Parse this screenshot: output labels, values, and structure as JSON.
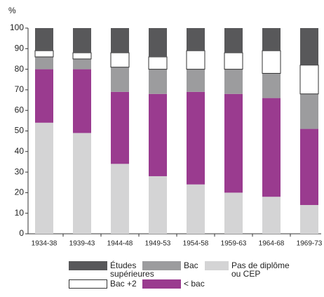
{
  "chart_data": {
    "type": "stacked_bar",
    "y_label": "%",
    "categories": [
      "1934-38",
      "1939-43",
      "1944-48",
      "1949-53",
      "1954-58",
      "1959-63",
      "1964-68",
      "1969-73"
    ],
    "series": [
      {
        "name": "Pas de diplôme ou CEP",
        "color": "#d4d4d5",
        "values": [
          54,
          49,
          34,
          28,
          24,
          20,
          18,
          14
        ]
      },
      {
        "name": "< bac",
        "color": "#9a3b8f",
        "values": [
          26,
          31,
          35,
          40,
          45,
          48,
          48,
          37
        ]
      },
      {
        "name": "Bac",
        "color": "#9c9c9e",
        "values": [
          6,
          5,
          12,
          12,
          11,
          12,
          12,
          17
        ]
      },
      {
        "name": "Bac +2",
        "color": "#ffffff",
        "values": [
          3,
          3,
          7,
          6,
          9,
          8,
          11,
          14
        ]
      },
      {
        "name": "Études supérieures",
        "color": "#58585a",
        "values": [
          11,
          12,
          12,
          14,
          11,
          12,
          11,
          18
        ]
      }
    ],
    "ylim": [
      0,
      100
    ],
    "yticks": [
      0,
      10,
      20,
      30,
      40,
      50,
      60,
      70,
      80,
      90,
      100
    ],
    "grid": false
  }
}
